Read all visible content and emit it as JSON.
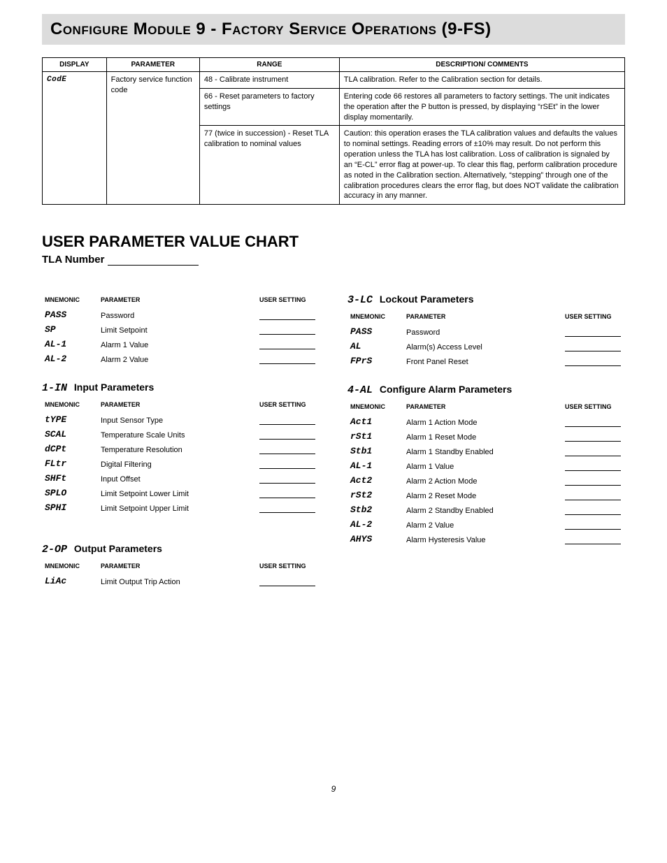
{
  "title": "Configure Module 9 - Factory Service Operations (9-FS)",
  "table": {
    "headers": {
      "display": "DISPLAY",
      "parameter": "PARAMETER",
      "range": "RANGE",
      "desc": "DESCRIPTION/ COMMENTS"
    },
    "display_mnemonic": "CodE",
    "parameter": "Factory service function code",
    "rows": [
      {
        "range": "48 - Calibrate instrument",
        "desc": "TLA calibration. Refer to the Calibration section for details."
      },
      {
        "range": "66 - Reset parameters to factory settings",
        "desc": "Entering code 66 restores all parameters to factory settings. The unit indicates the operation after the P button is pressed, by displaying “rSEt” in the lower display momentarily."
      },
      {
        "range": "77 (twice in succession) - Reset TLA calibration to nominal values",
        "desc": "Caution: this operation erases the TLA calibration values and defaults the values to nominal settings. Reading errors of ±10% may result. Do not perform this operation unless the TLA has lost calibration. Loss of calibration is signaled by an “E-CL” error flag at power-up. To clear this flag, perform calibration procedure as noted in the Calibration section. Alternatively, “stepping” through one of the calibration procedures clears the error flag, but does NOT validate the calibration accuracy in any manner."
      }
    ]
  },
  "chart": {
    "heading": "USER PARAMETER VALUE CHART",
    "sub": "TLA Number",
    "col_headers": {
      "mnemonic": "MNEMONIC",
      "parameter": "PARAMETER",
      "user_setting": "USER SETTING"
    },
    "left": {
      "unlabeled": [
        {
          "mn": "PASS",
          "pm": "Password"
        },
        {
          "mn": "SP",
          "pm": "Limit Setpoint"
        },
        {
          "mn": "AL-1",
          "pm": "Alarm 1 Value"
        },
        {
          "mn": "AL-2",
          "pm": "Alarm 2 Value"
        }
      ],
      "input": {
        "title_code": "1-IN",
        "title_text": "Input Parameters",
        "rows": [
          {
            "mn": "tYPE",
            "pm": "Input Sensor Type"
          },
          {
            "mn": "SCAL",
            "pm": "Temperature Scale Units"
          },
          {
            "mn": "dCPt",
            "pm": "Temperature Resolution"
          },
          {
            "mn": "FLtr",
            "pm": "Digital Filtering"
          },
          {
            "mn": "SHFt",
            "pm": "Input Offset"
          },
          {
            "mn": "SPLO",
            "pm": "Limit Setpoint Lower Limit"
          },
          {
            "mn": "SPHI",
            "pm": "Limit Setpoint Upper Limit"
          }
        ]
      },
      "output": {
        "title_code": "2-OP",
        "title_text": "Output Parameters",
        "rows": [
          {
            "mn": "LiAc",
            "pm": "Limit Output Trip Action"
          }
        ]
      }
    },
    "right": {
      "lockout": {
        "title_code": "3-LC",
        "title_text": "Lockout Parameters",
        "rows": [
          {
            "mn": "PASS",
            "pm": "Password"
          },
          {
            "mn": "AL",
            "pm": "Alarm(s) Access Level"
          },
          {
            "mn": "FPrS",
            "pm": "Front Panel Reset"
          }
        ]
      },
      "alarm": {
        "title_code": "4-AL",
        "title_text": "Configure Alarm Parameters",
        "rows": [
          {
            "mn": "Act1",
            "pm": "Alarm 1 Action Mode"
          },
          {
            "mn": "rSt1",
            "pm": "Alarm 1 Reset Mode"
          },
          {
            "mn": "Stb1",
            "pm": "Alarm 1 Standby Enabled"
          },
          {
            "mn": "AL-1",
            "pm": "Alarm 1 Value"
          },
          {
            "mn": "Act2",
            "pm": "Alarm 2 Action Mode"
          },
          {
            "mn": "rSt2",
            "pm": "Alarm 2 Reset Mode"
          },
          {
            "mn": "Stb2",
            "pm": "Alarm 2 Standby Enabled"
          },
          {
            "mn": "AL-2",
            "pm": "Alarm 2 Value"
          },
          {
            "mn": "AHYS",
            "pm": "Alarm Hysteresis Value"
          }
        ]
      }
    }
  },
  "page_number": "9"
}
